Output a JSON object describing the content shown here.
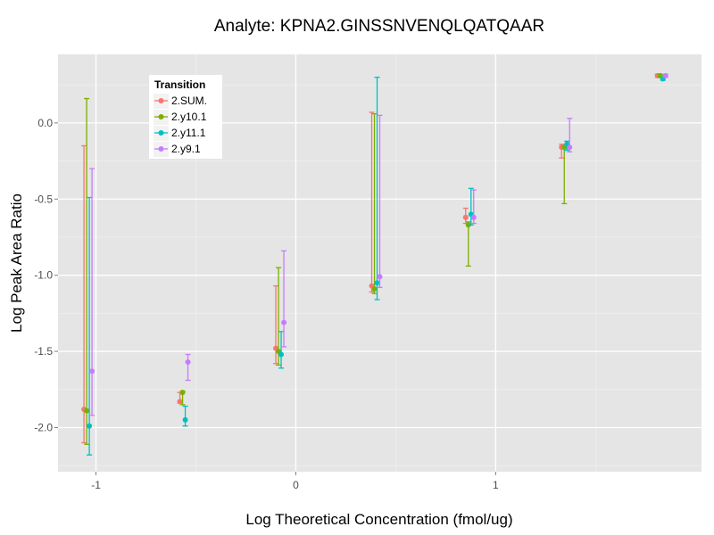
{
  "chart_data": {
    "type": "scatter",
    "title": "Analyte: KPNA2.GINSSNVENQLQATQAAR",
    "xlabel": "Log Theoretical Concentration (fmol/ug)",
    "ylabel": "Log Peak Area Ratio",
    "xlim": [
      -1.19,
      2.03
    ],
    "ylim": [
      -2.29,
      0.45
    ],
    "x_ticks": [
      -1,
      0,
      1
    ],
    "x_tick_labels": [
      "-1",
      "0",
      "1"
    ],
    "y_ticks": [
      0.0,
      -0.5,
      -1.0,
      -1.5,
      -2.0
    ],
    "y_tick_labels": [
      "0.0",
      "-0.5",
      "-1.0",
      "-1.5",
      "-2.0"
    ],
    "grid": true,
    "legend": {
      "title": "Transition",
      "placement": "top-left"
    },
    "x": [
      -1.04,
      -0.56,
      -0.08,
      0.4,
      0.87,
      1.35,
      1.83
    ],
    "series": [
      {
        "name": "2.SUM.",
        "color": "#F8766D",
        "values": [
          -1.88,
          -1.83,
          -1.48,
          -1.07,
          -0.62,
          -0.16,
          0.31
        ],
        "err_high": [
          -0.15,
          -1.77,
          -1.07,
          0.07,
          -0.56,
          -0.14,
          0.32
        ],
        "err_low": [
          -2.1,
          -1.84,
          -1.58,
          -1.11,
          -0.66,
          -0.23,
          0.3
        ]
      },
      {
        "name": "2.y10.1",
        "color": "#7CAE00",
        "values": [
          -1.89,
          -1.77,
          -1.5,
          -1.09,
          -0.67,
          -0.16,
          0.31
        ],
        "err_high": [
          0.16,
          -1.76,
          -0.95,
          0.06,
          -0.65,
          -0.15,
          0.32
        ],
        "err_low": [
          -2.11,
          -1.85,
          -1.59,
          -1.12,
          -0.94,
          -0.53,
          0.3
        ]
      },
      {
        "name": "2.y11.1",
        "color": "#00BFC4",
        "values": [
          -1.99,
          -1.95,
          -1.52,
          -1.05,
          -0.6,
          -0.14,
          0.29
        ],
        "err_high": [
          -0.49,
          -1.86,
          -1.37,
          0.3,
          -0.43,
          -0.12,
          0.3
        ],
        "err_low": [
          -2.18,
          -1.99,
          -1.61,
          -1.16,
          -0.67,
          -0.18,
          0.28
        ]
      },
      {
        "name": "2.y9.1",
        "color": "#C77CFF",
        "values": [
          -1.63,
          -1.57,
          -1.31,
          -1.01,
          -0.62,
          -0.16,
          0.31
        ],
        "err_high": [
          -0.3,
          -1.52,
          -0.84,
          0.05,
          -0.44,
          0.03,
          0.32
        ],
        "err_low": [
          -1.92,
          -1.69,
          -1.47,
          -1.08,
          -0.66,
          -0.19,
          0.3
        ]
      }
    ]
  }
}
